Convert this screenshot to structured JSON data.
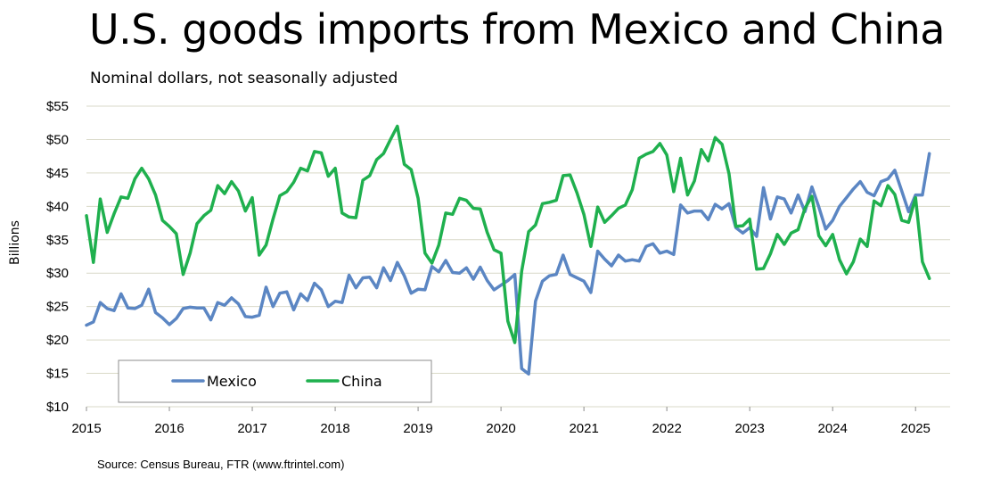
{
  "source_note": "Source: Census Bureau, FTR (www.ftrintel.com)",
  "colors": {
    "mexico": "#5B86C3",
    "china": "#1FB04E",
    "grid": "#D9D9C8"
  },
  "chart_data": {
    "type": "line",
    "title": "U.S. goods imports from Mexico and China",
    "subtitle": "Nominal dollars, not seasonally adjusted",
    "ylabel": "Billions",
    "xlabel": "",
    "ylim": [
      10,
      55
    ],
    "yticks": [
      10,
      15,
      20,
      25,
      30,
      35,
      40,
      45,
      50,
      55
    ],
    "ytick_labels": [
      "$10",
      "$15",
      "$20",
      "$25",
      "$30",
      "$35",
      "$40",
      "$45",
      "$50",
      "$55"
    ],
    "xlim": [
      2015,
      2025.417
    ],
    "xticks": [
      2015,
      2016,
      2017,
      2018,
      2019,
      2020,
      2021,
      2022,
      2023,
      2024,
      2025
    ],
    "xtick_labels": [
      "2015",
      "2016",
      "2017",
      "2018",
      "2019",
      "2020",
      "2021",
      "2022",
      "2023",
      "2024",
      "2025"
    ],
    "grid": true,
    "legend_position": "lower-left",
    "x_start": 2015,
    "x_step": 0.08333,
    "series": [
      {
        "name": "Mexico",
        "color": "#5B86C3",
        "values": [
          22.2,
          22.7,
          25.6,
          24.7,
          24.4,
          26.9,
          24.8,
          24.7,
          25.2,
          27.6,
          24.1,
          23.3,
          22.3,
          23.2,
          24.7,
          24.9,
          24.8,
          24.8,
          23.0,
          25.6,
          25.2,
          26.3,
          25.4,
          23.5,
          23.4,
          23.7,
          27.9,
          25.0,
          27.0,
          27.2,
          24.5,
          26.9,
          25.9,
          28.5,
          27.5,
          25.0,
          25.8,
          25.6,
          29.7,
          27.8,
          29.3,
          29.4,
          27.8,
          30.8,
          28.9,
          31.6,
          29.6,
          27.0,
          27.6,
          27.5,
          31.0,
          30.2,
          31.9,
          30.1,
          30.0,
          30.8,
          29.1,
          30.9,
          28.9,
          27.5,
          28.2,
          28.9,
          29.8,
          15.7,
          14.9,
          25.8,
          28.8,
          29.6,
          29.8,
          32.7,
          29.8,
          29.3,
          28.8,
          27.1,
          33.3,
          32.1,
          31.1,
          32.7,
          31.8,
          32.0,
          31.8,
          34.0,
          34.4,
          33.0,
          33.3,
          32.8,
          40.2,
          39.0,
          39.3,
          39.3,
          38.0,
          40.3,
          39.6,
          40.4,
          36.8,
          36.0,
          36.8,
          35.5,
          42.8,
          38.1,
          41.4,
          41.1,
          39.0,
          41.7,
          39.2,
          42.9,
          39.9,
          36.6,
          37.9,
          40.0,
          41.3,
          42.6,
          43.7,
          42.1,
          41.6,
          43.7,
          44.1,
          45.4,
          42.3,
          39.2,
          41.7,
          41.7,
          47.9
        ]
      },
      {
        "name": "China",
        "color": "#1FB04E",
        "values": [
          38.6,
          31.6,
          41.1,
          36.1,
          38.9,
          41.4,
          41.2,
          44.1,
          45.7,
          44.1,
          41.7,
          37.9,
          37.0,
          35.9,
          29.8,
          33.0,
          37.4,
          38.6,
          39.4,
          43.1,
          41.9,
          43.7,
          42.3,
          39.3,
          41.3,
          32.7,
          34.2,
          38.1,
          41.6,
          42.2,
          43.6,
          45.7,
          45.3,
          48.2,
          48.0,
          44.5,
          45.7,
          39.0,
          38.4,
          38.3,
          43.9,
          44.6,
          47.0,
          47.9,
          50.0,
          52.0,
          46.3,
          45.5,
          41.2,
          33.0,
          31.5,
          34.2,
          39.0,
          38.8,
          41.2,
          40.9,
          39.7,
          39.6,
          36.1,
          33.5,
          33.0,
          22.8,
          19.6,
          30.3,
          36.2,
          37.2,
          40.4,
          40.6,
          40.9,
          44.6,
          44.7,
          42.0,
          38.8,
          34.0,
          39.9,
          37.6,
          38.6,
          39.7,
          40.2,
          42.5,
          47.2,
          47.8,
          48.2,
          49.4,
          47.7,
          42.2,
          47.2,
          41.7,
          43.8,
          48.5,
          46.8,
          50.3,
          49.3,
          44.9,
          37.0,
          37.1,
          38.1,
          30.6,
          30.7,
          32.9,
          35.8,
          34.3,
          36.0,
          36.5,
          39.7,
          41.5,
          35.6,
          34.1,
          35.8,
          32.0,
          29.9,
          31.7,
          35.1,
          34.0,
          40.8,
          40.1,
          43.1,
          41.8,
          37.9,
          37.6,
          41.3,
          31.7,
          29.2
        ]
      }
    ]
  }
}
